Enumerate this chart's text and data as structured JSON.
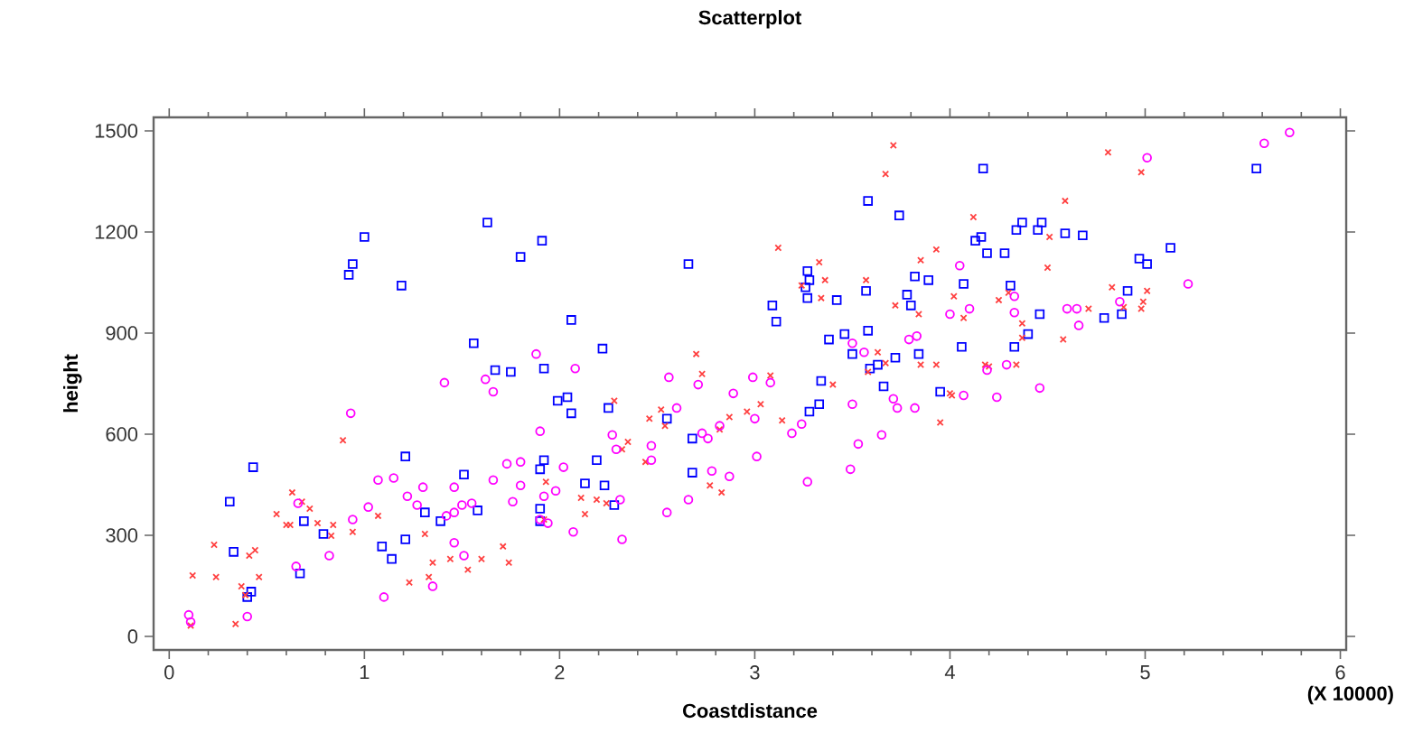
{
  "chart_data": {
    "type": "scatter",
    "title": "Scatterplot",
    "xlabel": "Coastdistance",
    "ylabel": "height",
    "annotations": [
      "(X 10000)"
    ],
    "xlim": [
      -0.08,
      6.03
    ],
    "ylim": [
      -40,
      1540
    ],
    "xticks": [
      0,
      1,
      2,
      3,
      4,
      5,
      6
    ],
    "yticks": [
      0,
      300,
      600,
      900,
      1200,
      1500
    ],
    "grid": false,
    "series": [
      {
        "color": "#0000ff",
        "marker": "square",
        "x": [
          0.43,
          0.31,
          0.33,
          0.69,
          0.67,
          0.79,
          0.4,
          0.42,
          1.21,
          1.51,
          1.31,
          1.39,
          1.58,
          1.09,
          1.14,
          1.21,
          1.67,
          1.75,
          1.92,
          1.99,
          2.04,
          2.06,
          1.92,
          1.9,
          1.9,
          1.9,
          2.13,
          1.0,
          0.94,
          0.92,
          1.19,
          1.63,
          1.8,
          1.91,
          2.06,
          1.56,
          2.22,
          2.66,
          3.09,
          3.11,
          3.27,
          3.28,
          3.26,
          3.27,
          3.42,
          3.57,
          3.58,
          3.74,
          3.82,
          3.89,
          3.78,
          3.8,
          4.07,
          4.17,
          4.13,
          4.16,
          4.19,
          3.38,
          3.46,
          3.5,
          3.58,
          3.72,
          3.63,
          3.59,
          3.84,
          4.06,
          3.34,
          3.66,
          3.95,
          3.28,
          3.33,
          2.55,
          2.25,
          2.68,
          2.68,
          2.19,
          2.23,
          2.28,
          5.57,
          4.28,
          4.34,
          4.37,
          4.45,
          4.47,
          4.59,
          4.68,
          4.97,
          5.01,
          5.13,
          4.31,
          4.46,
          4.4,
          4.33,
          4.79,
          4.88,
          4.91
        ],
        "values": [
          502,
          400,
          251,
          342,
          187,
          304,
          117,
          133,
          534,
          480,
          368,
          342,
          374,
          267,
          230,
          288,
          790,
          785,
          795,
          699,
          710,
          662,
          523,
          496,
          379,
          342,
          454,
          1185,
          1105,
          1073,
          1041,
          1228,
          1126,
          1174,
          939,
          870,
          854,
          1105,
          982,
          934,
          1084,
          1057,
          1036,
          1004,
          998,
          1025,
          1292,
          1249,
          1068,
          1057,
          1014,
          982,
          1046,
          1388,
          1174,
          1185,
          1137,
          881,
          897,
          838,
          907,
          827,
          806,
          795,
          838,
          859,
          758,
          742,
          726,
          667,
          689,
          646,
          678,
          587,
          486,
          523,
          448,
          390,
          1388,
          1137,
          1206,
          1228,
          1206,
          1228,
          1196,
          1190,
          1121,
          1105,
          1153,
          1041,
          956,
          897,
          859,
          945,
          956,
          1025
        ]
      },
      {
        "color": "#ff4040",
        "marker": "cross",
        "x": [
          0.89,
          0.55,
          0.63,
          0.68,
          0.72,
          0.6,
          0.62,
          0.76,
          0.84,
          0.83,
          0.94,
          1.07,
          0.23,
          0.12,
          0.24,
          0.41,
          0.44,
          0.46,
          0.37,
          0.39,
          0.34,
          0.11,
          1.31,
          1.35,
          1.23,
          1.33,
          1.44,
          1.53,
          1.6,
          1.71,
          1.74,
          1.93,
          2.11,
          2.13,
          1.92,
          3.71,
          3.67,
          4.12,
          3.12,
          3.33,
          3.36,
          3.24,
          3.34,
          3.57,
          3.72,
          3.85,
          3.93,
          3.84,
          4.02,
          4.07,
          2.7,
          2.73,
          3.08,
          3.63,
          3.67,
          3.85,
          3.93,
          3.58,
          3.4,
          4.01,
          4.18,
          2.28,
          2.46,
          2.52,
          2.54,
          2.87,
          2.96,
          3.03,
          3.14,
          2.82,
          2.35,
          2.32,
          2.44,
          2.19,
          2.24,
          2.77,
          2.83,
          3.95,
          4.0,
          4.2,
          4.81,
          4.98,
          4.59,
          4.51,
          4.5,
          4.83,
          5.01,
          4.25,
          4.3,
          4.89,
          4.99,
          4.98,
          4.71,
          4.37,
          4.37,
          4.58,
          4.34
        ],
        "values": [
          582,
          363,
          427,
          400,
          379,
          331,
          331,
          336,
          331,
          299,
          310,
          358,
          272,
          181,
          176,
          240,
          256,
          176,
          149,
          123,
          37,
          32,
          304,
          219,
          160,
          176,
          230,
          198,
          230,
          267,
          219,
          459,
          411,
          363,
          347,
          1457,
          1372,
          1244,
          1153,
          1110,
          1057,
          1041,
          1004,
          1057,
          982,
          1116,
          1148,
          956,
          1009,
          945,
          838,
          779,
          774,
          843,
          811,
          806,
          806,
          785,
          747,
          715,
          806,
          699,
          646,
          673,
          625,
          651,
          667,
          689,
          641,
          614,
          577,
          555,
          518,
          406,
          395,
          448,
          427,
          635,
          721,
          801,
          1436,
          1377,
          1292,
          1185,
          1094,
          1036,
          1025,
          998,
          1020,
          977,
          993,
          972,
          972,
          929,
          886,
          881,
          806
        ]
      },
      {
        "color": "#ff00ff",
        "marker": "circle",
        "x": [
          0.93,
          1.41,
          1.62,
          1.66,
          2.08,
          1.07,
          1.15,
          1.22,
          1.3,
          1.27,
          1.46,
          1.5,
          1.55,
          1.42,
          1.46,
          1.02,
          0.94,
          0.66,
          0.82,
          0.65,
          1.1,
          1.35,
          1.46,
          1.51,
          1.66,
          1.73,
          1.8,
          1.8,
          1.76,
          1.9,
          2.02,
          1.98,
          1.92,
          1.94,
          1.9,
          2.07,
          0.1,
          0.11,
          0.4,
          1.88,
          2.56,
          2.71,
          2.99,
          3.08,
          2.89,
          3.5,
          3.56,
          3.79,
          3.83,
          4.05,
          4.1,
          4.0,
          4.07,
          3.71,
          2.6,
          3.0,
          3.24,
          3.19,
          2.82,
          2.73,
          2.76,
          2.47,
          2.47,
          2.27,
          2.29,
          2.78,
          2.87,
          2.66,
          2.55,
          2.31,
          2.32,
          3.01,
          3.27,
          3.5,
          3.53,
          3.49,
          3.65,
          3.73,
          3.82,
          4.19,
          5.01,
          5.61,
          5.74,
          5.22,
          4.33,
          4.33,
          4.6,
          4.65,
          4.87,
          4.66,
          4.29,
          4.24,
          4.46
        ],
        "values": [
          662,
          753,
          763,
          726,
          795,
          464,
          470,
          416,
          443,
          390,
          443,
          390,
          395,
          358,
          368,
          384,
          347,
          395,
          240,
          208,
          117,
          149,
          278,
          240,
          464,
          512,
          518,
          448,
          400,
          609,
          502,
          432,
          416,
          336,
          347,
          310,
          64,
          43,
          59,
          838,
          769,
          747,
          769,
          753,
          721,
          870,
          843,
          881,
          891,
          1100,
          972,
          956,
          715,
          705,
          678,
          646,
          630,
          603,
          625,
          603,
          587,
          566,
          523,
          598,
          555,
          491,
          475,
          406,
          368,
          406,
          288,
          534,
          459,
          689,
          571,
          496,
          598,
          678,
          678,
          790,
          1420,
          1463,
          1495,
          1046,
          1009,
          961,
          972,
          972,
          993,
          923,
          806,
          710,
          737
        ]
      }
    ]
  }
}
